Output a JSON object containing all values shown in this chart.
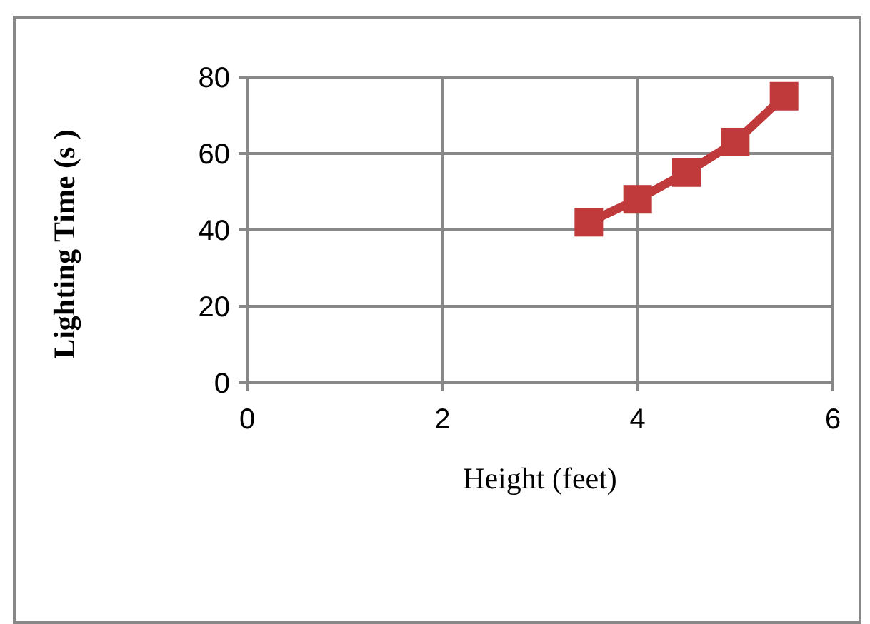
{
  "chart_data": {
    "type": "line",
    "xlabel": "Height (feet)",
    "ylabel": "Lighting Time (s )",
    "x": [
      3.5,
      4,
      4.5,
      5,
      5.5
    ],
    "series": [
      {
        "color": "#c0393b",
        "values": [
          42,
          48,
          55,
          63,
          75
        ]
      }
    ],
    "xlim": [
      0,
      6
    ],
    "xticks": [
      0,
      2,
      4,
      6
    ],
    "ylim": [
      0,
      80
    ],
    "yticks": [
      0,
      20,
      40,
      60,
      80
    ],
    "grid": true,
    "marker": "square",
    "line_style": "solid"
  }
}
